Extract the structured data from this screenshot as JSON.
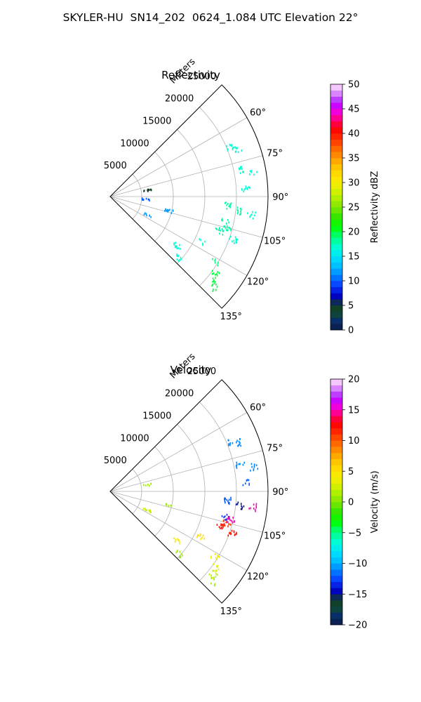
{
  "title": "SKYLER-HU  SN14_202  0624_1.084 UTC Elevation 22°",
  "chart_data": [
    {
      "type": "polar-sector",
      "title": "Reflectivity",
      "range_label": "Meters",
      "range_ticks": [
        5000,
        10000,
        15000,
        20000,
        25000
      ],
      "range_tick_labels": [
        "5000",
        "10000",
        "15000",
        "20000",
        "25000"
      ],
      "rmax": 25000,
      "azimuth_range_deg": [
        45,
        135
      ],
      "azimuth_ticks": [
        60,
        75,
        90,
        105,
        120,
        135
      ],
      "azimuth_tick_labels": [
        "60°",
        "75°",
        "90°",
        "105°",
        "120°",
        "135°"
      ],
      "grid": true,
      "colorbar": {
        "label": "Reflectivity dBZ",
        "min": 0,
        "max": 50,
        "ticks": [
          0,
          5,
          10,
          15,
          20,
          25,
          30,
          35,
          40,
          45,
          50
        ],
        "tick_labels": [
          "0",
          "5",
          "10",
          "15",
          "20",
          "25",
          "30",
          "35",
          "40",
          "45",
          "50"
        ]
      },
      "echoes": [
        {
          "az_deg": 67,
          "range_m": 20500,
          "value": 17
        },
        {
          "az_deg": 69,
          "range_m": 21500,
          "value": 17
        },
        {
          "az_deg": 78,
          "range_m": 21000,
          "value": 17
        },
        {
          "az_deg": 80,
          "range_m": 23000,
          "value": 17
        },
        {
          "az_deg": 86,
          "range_m": 21500,
          "value": 17
        },
        {
          "az_deg": 94,
          "range_m": 18500,
          "value": 18
        },
        {
          "az_deg": 96,
          "range_m": 20500,
          "value": 18
        },
        {
          "az_deg": 97,
          "range_m": 22500,
          "value": 17
        },
        {
          "az_deg": 102,
          "range_m": 18500,
          "value": 18
        },
        {
          "az_deg": 105,
          "range_m": 19000,
          "value": 18
        },
        {
          "az_deg": 107,
          "range_m": 18000,
          "value": 18
        },
        {
          "az_deg": 109,
          "range_m": 20500,
          "value": 17
        },
        {
          "az_deg": 116,
          "range_m": 16000,
          "value": 17
        },
        {
          "az_deg": 122,
          "range_m": 19500,
          "value": 19
        },
        {
          "az_deg": 126,
          "range_m": 20500,
          "value": 20
        },
        {
          "az_deg": 129,
          "range_m": 21000,
          "value": 20
        },
        {
          "az_deg": 131,
          "range_m": 21500,
          "value": 20
        },
        {
          "az_deg": 126,
          "range_m": 13000,
          "value": 17
        },
        {
          "az_deg": 132,
          "range_m": 14500,
          "value": 17
        },
        {
          "az_deg": 116,
          "range_m": 6500,
          "value": 12
        },
        {
          "az_deg": 103,
          "range_m": 9500,
          "value": 12
        },
        {
          "az_deg": 79,
          "range_m": 6000,
          "value": 5
        },
        {
          "az_deg": 93,
          "range_m": 5500,
          "value": 10
        }
      ]
    },
    {
      "type": "polar-sector",
      "title": "Velocity",
      "range_label": "Meters",
      "range_ticks": [
        5000,
        10000,
        15000,
        20000,
        25000
      ],
      "range_tick_labels": [
        "5000",
        "10000",
        "15000",
        "20000",
        "25000"
      ],
      "rmax": 25000,
      "azimuth_range_deg": [
        45,
        135
      ],
      "azimuth_ticks": [
        60,
        75,
        90,
        105,
        120,
        135
      ],
      "azimuth_tick_labels": [
        "60°",
        "75°",
        "90°",
        "105°",
        "120°",
        "135°"
      ],
      "grid": true,
      "colorbar": {
        "label": "Velocity (m/s)",
        "min": -20,
        "max": 20,
        "ticks": [
          -20,
          -15,
          -10,
          -5,
          0,
          5,
          10,
          15,
          20
        ],
        "tick_labels": [
          "−20",
          "−15",
          "−10",
          "−5",
          "0",
          "5",
          "10",
          "15",
          "20"
        ]
      },
      "echoes": [
        {
          "az_deg": 67,
          "range_m": 20500,
          "value": -11
        },
        {
          "az_deg": 69,
          "range_m": 21500,
          "value": -11
        },
        {
          "az_deg": 78,
          "range_m": 21000,
          "value": -11
        },
        {
          "az_deg": 80,
          "range_m": 23000,
          "value": -11
        },
        {
          "az_deg": 86,
          "range_m": 21500,
          "value": -12
        },
        {
          "az_deg": 94,
          "range_m": 18500,
          "value": -12
        },
        {
          "az_deg": 96,
          "range_m": 20500,
          "value": -15
        },
        {
          "az_deg": 96,
          "range_m": 22500,
          "value": 15
        },
        {
          "az_deg": 102,
          "range_m": 18500,
          "value": -13
        },
        {
          "az_deg": 103,
          "range_m": 19500,
          "value": 15
        },
        {
          "az_deg": 105,
          "range_m": 19000,
          "value": 11
        },
        {
          "az_deg": 107,
          "range_m": 18000,
          "value": 12
        },
        {
          "az_deg": 109,
          "range_m": 20500,
          "value": 12
        },
        {
          "az_deg": 116,
          "range_m": 16000,
          "value": 5
        },
        {
          "az_deg": 122,
          "range_m": 19500,
          "value": 4
        },
        {
          "az_deg": 126,
          "range_m": 20500,
          "value": 3
        },
        {
          "az_deg": 129,
          "range_m": 21000,
          "value": 2
        },
        {
          "az_deg": 131,
          "range_m": 21500,
          "value": 1
        },
        {
          "az_deg": 126,
          "range_m": 13000,
          "value": 4
        },
        {
          "az_deg": 132,
          "range_m": 14500,
          "value": 1
        },
        {
          "az_deg": 116,
          "range_m": 6500,
          "value": 2
        },
        {
          "az_deg": 103,
          "range_m": 9500,
          "value": 1
        },
        {
          "az_deg": 79,
          "range_m": 6000,
          "value": 1
        }
      ]
    }
  ]
}
